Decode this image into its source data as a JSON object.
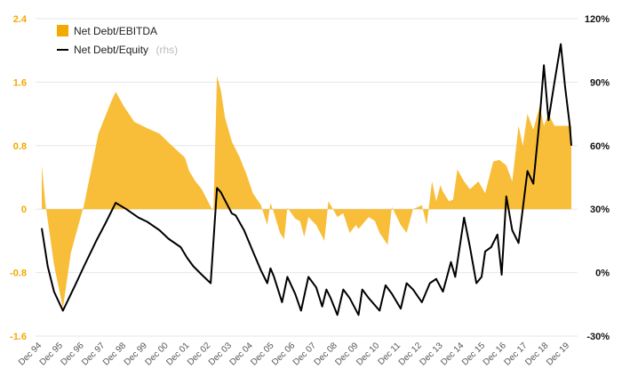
{
  "chart_data": {
    "type": "area",
    "grid": true,
    "legend_position": "top-left",
    "colors": {
      "area": "#f2a900",
      "area_fill": "#f7b928",
      "line": "#000000",
      "grid": "#e6e6e6",
      "left_axis_text": "#f2a900",
      "right_axis_text": "#111111"
    },
    "legend": [
      {
        "label": "Net Debt/EBITDA",
        "suffix": ""
      },
      {
        "label": "Net Debt/Equity",
        "suffix": "(rhs)"
      }
    ],
    "y_left": {
      "min": -1.6,
      "max": 2.4,
      "ticks": [
        "2.4",
        "1.6",
        "0.8",
        "0",
        "-0.8",
        "-1.6"
      ],
      "tick_values": [
        2.4,
        1.6,
        0.8,
        0,
        -0.8,
        -1.6
      ]
    },
    "y_right": {
      "min": -30,
      "max": 120,
      "ticks": [
        "120%",
        "90%",
        "60%",
        "30%",
        "0%",
        "-30%"
      ],
      "tick_values": [
        120,
        90,
        60,
        30,
        0,
        -30
      ]
    },
    "x": {
      "min": 1994.92,
      "max": 2020.0,
      "labels": [
        "Dec 94",
        "Dec 95",
        "Dec 96",
        "Dec 97",
        "Dec 98",
        "Dec 99",
        "Dec 00",
        "Dec 01",
        "Dec 02",
        "Dec 03",
        "Dec 04",
        "Dec 05",
        "Dec 06",
        "Dec 07",
        "Dec 08",
        "Dec 09",
        "Dec 10",
        "Dec 11",
        "Dec 12",
        "Dec 13",
        "Dec 14",
        "Dec 15",
        "Dec 16",
        "Dec 17",
        "Dec 18",
        "Dec 19"
      ]
    },
    "series": [
      {
        "name": "Net Debt/EBITDA",
        "axis": "left",
        "kind": "area",
        "points": [
          [
            1994.92,
            0.55
          ],
          [
            1995.1,
            0.05
          ],
          [
            1995.5,
            -0.7
          ],
          [
            1995.92,
            -1.25
          ],
          [
            1996.3,
            -0.55
          ],
          [
            1996.92,
            0.05
          ],
          [
            1997.3,
            0.55
          ],
          [
            1997.6,
            0.95
          ],
          [
            1998.2,
            1.35
          ],
          [
            1998.42,
            1.48
          ],
          [
            1998.8,
            1.3
          ],
          [
            1999.3,
            1.1
          ],
          [
            1999.92,
            1.02
          ],
          [
            2000.5,
            0.95
          ],
          [
            2001.0,
            0.82
          ],
          [
            2001.7,
            0.65
          ],
          [
            2001.9,
            0.48
          ],
          [
            2002.2,
            0.35
          ],
          [
            2002.5,
            0.25
          ],
          [
            2002.92,
            0.03
          ],
          [
            2003.05,
            -0.02
          ],
          [
            2003.22,
            1.68
          ],
          [
            2003.4,
            1.5
          ],
          [
            2003.6,
            1.15
          ],
          [
            2003.92,
            0.85
          ],
          [
            2004.3,
            0.65
          ],
          [
            2004.6,
            0.45
          ],
          [
            2004.92,
            0.2
          ],
          [
            2005.3,
            0.05
          ],
          [
            2005.6,
            -0.2
          ],
          [
            2005.75,
            0.08
          ],
          [
            2005.92,
            -0.05
          ],
          [
            2006.2,
            -0.3
          ],
          [
            2006.4,
            -0.38
          ],
          [
            2006.55,
            0.02
          ],
          [
            2006.92,
            -0.12
          ],
          [
            2007.15,
            -0.15
          ],
          [
            2007.35,
            -0.35
          ],
          [
            2007.55,
            -0.1
          ],
          [
            2007.92,
            -0.2
          ],
          [
            2008.3,
            -0.4
          ],
          [
            2008.5,
            0.1
          ],
          [
            2008.92,
            -0.1
          ],
          [
            2009.2,
            -0.05
          ],
          [
            2009.5,
            -0.3
          ],
          [
            2009.8,
            -0.2
          ],
          [
            2009.92,
            -0.25
          ],
          [
            2010.4,
            -0.1
          ],
          [
            2010.7,
            -0.15
          ],
          [
            2010.92,
            -0.3
          ],
          [
            2011.3,
            -0.45
          ],
          [
            2011.5,
            0.03
          ],
          [
            2011.92,
            -0.2
          ],
          [
            2012.2,
            -0.3
          ],
          [
            2012.5,
            0.0
          ],
          [
            2012.92,
            0.05
          ],
          [
            2013.15,
            -0.2
          ],
          [
            2013.4,
            0.35
          ],
          [
            2013.6,
            0.1
          ],
          [
            2013.8,
            0.3
          ],
          [
            2013.92,
            0.22
          ],
          [
            2014.2,
            0.1
          ],
          [
            2014.4,
            0.12
          ],
          [
            2014.6,
            0.5
          ],
          [
            2014.92,
            0.35
          ],
          [
            2015.2,
            0.25
          ],
          [
            2015.4,
            0.3
          ],
          [
            2015.6,
            0.35
          ],
          [
            2015.92,
            0.2
          ],
          [
            2016.3,
            0.6
          ],
          [
            2016.6,
            0.62
          ],
          [
            2016.92,
            0.55
          ],
          [
            2017.2,
            0.35
          ],
          [
            2017.5,
            1.05
          ],
          [
            2017.7,
            0.8
          ],
          [
            2017.92,
            1.2
          ],
          [
            2018.2,
            1.0
          ],
          [
            2018.5,
            1.3
          ],
          [
            2018.7,
            1.05
          ],
          [
            2018.92,
            1.2
          ],
          [
            2019.2,
            1.05
          ],
          [
            2019.5,
            1.05
          ],
          [
            2019.92,
            1.05
          ],
          [
            2020.0,
            1.05
          ]
        ]
      },
      {
        "name": "Net Debt/Equity",
        "axis": "right",
        "kind": "line",
        "points": [
          [
            1994.92,
            21
          ],
          [
            1995.2,
            3
          ],
          [
            1995.5,
            -9
          ],
          [
            1995.92,
            -18
          ],
          [
            1996.5,
            -6
          ],
          [
            1996.92,
            3
          ],
          [
            1997.5,
            15
          ],
          [
            1997.92,
            23
          ],
          [
            1998.42,
            33
          ],
          [
            1998.92,
            30
          ],
          [
            1999.5,
            26
          ],
          [
            1999.92,
            24
          ],
          [
            2000.5,
            20
          ],
          [
            2000.92,
            16
          ],
          [
            2001.5,
            12
          ],
          [
            2001.8,
            7
          ],
          [
            2002.1,
            3
          ],
          [
            2002.5,
            -1
          ],
          [
            2002.92,
            -5
          ],
          [
            2003.22,
            40
          ],
          [
            2003.4,
            38
          ],
          [
            2003.92,
            28
          ],
          [
            2004.1,
            27
          ],
          [
            2004.5,
            20
          ],
          [
            2004.92,
            10
          ],
          [
            2005.3,
            1
          ],
          [
            2005.6,
            -5
          ],
          [
            2005.75,
            2
          ],
          [
            2005.92,
            -2
          ],
          [
            2006.3,
            -14
          ],
          [
            2006.55,
            -2
          ],
          [
            2006.92,
            -10
          ],
          [
            2007.2,
            -18
          ],
          [
            2007.55,
            -2
          ],
          [
            2007.92,
            -7
          ],
          [
            2008.2,
            -16
          ],
          [
            2008.4,
            -8
          ],
          [
            2008.6,
            -12
          ],
          [
            2008.92,
            -20
          ],
          [
            2009.2,
            -8
          ],
          [
            2009.5,
            -12
          ],
          [
            2009.92,
            -20
          ],
          [
            2010.1,
            -8
          ],
          [
            2010.4,
            -12
          ],
          [
            2010.92,
            -18
          ],
          [
            2011.2,
            -6
          ],
          [
            2011.5,
            -10
          ],
          [
            2011.92,
            -17
          ],
          [
            2012.2,
            -5
          ],
          [
            2012.5,
            -8
          ],
          [
            2012.92,
            -14
          ],
          [
            2013.3,
            -5
          ],
          [
            2013.6,
            -3
          ],
          [
            2013.92,
            -9
          ],
          [
            2014.3,
            5
          ],
          [
            2014.5,
            -2
          ],
          [
            2014.92,
            26
          ],
          [
            2015.2,
            12
          ],
          [
            2015.5,
            -5
          ],
          [
            2015.75,
            -2
          ],
          [
            2015.92,
            10
          ],
          [
            2016.2,
            12
          ],
          [
            2016.5,
            18
          ],
          [
            2016.7,
            -1
          ],
          [
            2016.92,
            36
          ],
          [
            2017.2,
            20
          ],
          [
            2017.5,
            14
          ],
          [
            2017.7,
            30
          ],
          [
            2017.92,
            48
          ],
          [
            2018.2,
            42
          ],
          [
            2018.5,
            73
          ],
          [
            2018.7,
            98
          ],
          [
            2018.92,
            72
          ],
          [
            2019.2,
            90
          ],
          [
            2019.5,
            108
          ],
          [
            2019.7,
            88
          ],
          [
            2019.92,
            70
          ],
          [
            2020.0,
            60
          ]
        ]
      }
    ]
  }
}
